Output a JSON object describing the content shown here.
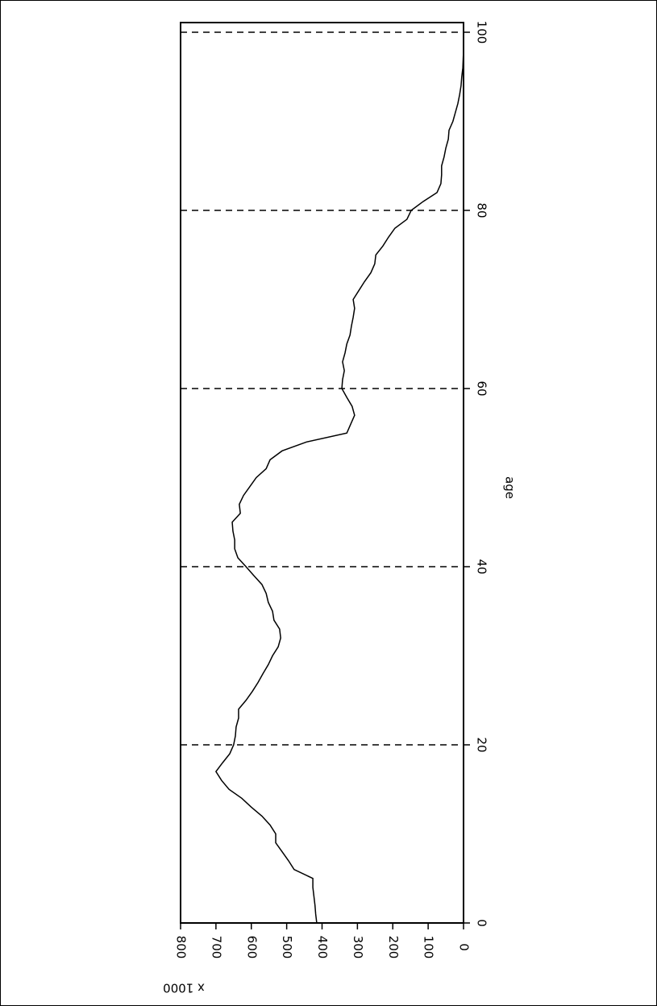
{
  "chart_data": {
    "type": "line",
    "x_label": "age",
    "y_label": "x 1000",
    "color": "#000000",
    "x": [
      0,
      1,
      2,
      3,
      4,
      5,
      6,
      7,
      8,
      9,
      10,
      11,
      12,
      13,
      14,
      15,
      16,
      17,
      18,
      19,
      20,
      21,
      22,
      23,
      24,
      25,
      26,
      27,
      28,
      29,
      30,
      31,
      32,
      33,
      34,
      35,
      36,
      37,
      38,
      39,
      40,
      41,
      42,
      43,
      44,
      45,
      46,
      47,
      48,
      49,
      50,
      51,
      52,
      53,
      54,
      55,
      56,
      57,
      58,
      59,
      60,
      61,
      62,
      63,
      64,
      65,
      66,
      67,
      68,
      69,
      70,
      71,
      72,
      73,
      74,
      75,
      76,
      77,
      78,
      79,
      80,
      81,
      82,
      83,
      84,
      85,
      86,
      87,
      88,
      89,
      90,
      91,
      92,
      93,
      94,
      95,
      96,
      97,
      98,
      99,
      100
    ],
    "values": [
      415,
      418,
      420,
      423,
      426,
      426,
      479,
      495,
      513,
      531,
      531,
      547,
      570,
      600,
      627,
      663,
      684,
      700,
      681,
      661,
      650,
      645,
      643,
      636,
      636,
      615,
      597,
      581,
      567,
      552,
      540,
      524,
      517,
      520,
      536,
      540,
      552,
      558,
      570,
      593,
      615,
      638,
      647,
      647,
      652,
      654,
      631,
      634,
      622,
      604,
      586,
      558,
      547,
      513,
      444,
      330,
      319,
      308,
      315,
      330,
      344,
      342,
      337,
      342,
      335,
      330,
      321,
      317,
      312,
      308,
      312,
      296,
      280,
      262,
      251,
      248,
      228,
      212,
      194,
      160,
      148,
      114,
      75,
      64,
      62,
      62,
      55,
      50,
      43,
      41,
      30,
      23,
      16,
      11,
      7,
      5,
      2,
      1,
      0,
      0,
      0
    ],
    "xlim": [
      0,
      100
    ],
    "xticks": [
      0,
      20,
      40,
      60,
      80,
      100
    ],
    "ylim": [
      0,
      800
    ],
    "yticks": [
      0,
      100,
      200,
      300,
      400,
      500,
      600,
      700,
      800
    ],
    "grid": true
  }
}
